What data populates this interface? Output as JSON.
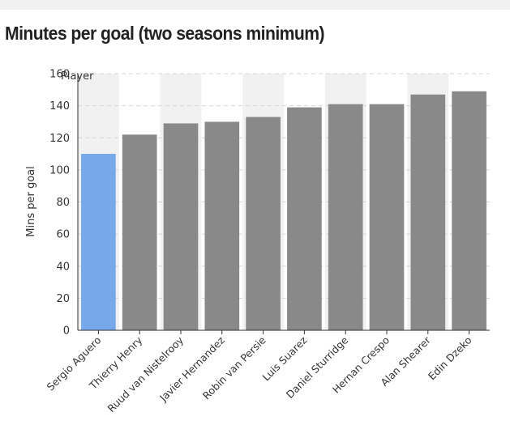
{
  "chart_data": {
    "type": "bar",
    "title": "Minutes per goal (two seasons minimum)",
    "xlabel": "",
    "ylabel": "Mins per goal",
    "legend_title": "Player",
    "categories": [
      "Sergio Aguero",
      "Thierry Henry",
      "Ruud van Nistelrooy",
      "Javier Hernandez",
      "Robin van Persie",
      "Luis Suarez",
      "Daniel Sturridge",
      "Hernan Crespo",
      "Alan Shearer",
      "Edin Dzeko"
    ],
    "values": [
      110,
      122,
      129,
      130,
      133,
      139,
      141,
      141,
      147,
      149
    ],
    "highlight_index": 0,
    "ylim": [
      0,
      160
    ],
    "yticks": [
      0,
      20,
      40,
      60,
      80,
      100,
      120,
      140,
      160
    ],
    "grid": true,
    "colors": {
      "highlight": "#77a9ea",
      "bar": "#898989",
      "band": "#f1f1f1",
      "grid": "#d6d6d6",
      "axis": "#333333"
    }
  }
}
